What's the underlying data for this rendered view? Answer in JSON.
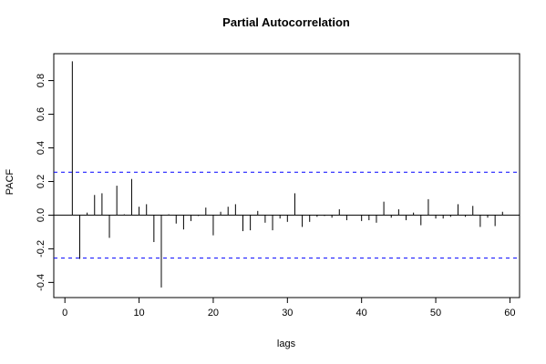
{
  "chart_data": {
    "type": "bar",
    "title": "Partial Autocorrelation",
    "xlabel": "lags",
    "ylabel": "PACF",
    "xlim": [
      0,
      60
    ],
    "ylim": [
      -0.45,
      0.92
    ],
    "x_ticks": [
      0,
      10,
      20,
      30,
      40,
      50,
      60
    ],
    "y_ticks": [
      -0.4,
      -0.2,
      0.0,
      0.2,
      0.4,
      0.6,
      0.8
    ],
    "x_tick_labels": [
      "0",
      "10",
      "20",
      "30",
      "40",
      "50",
      "60"
    ],
    "y_tick_labels": [
      "-0.4",
      "-0.2",
      "0.0",
      "0.2",
      "0.4",
      "0.6",
      "0.8"
    ],
    "confidence_band": 0.255,
    "confidence_color": "#0000ff",
    "bar_color": "#000000",
    "lags": [
      1,
      2,
      3,
      4,
      5,
      6,
      7,
      8,
      9,
      10,
      11,
      12,
      13,
      14,
      15,
      16,
      17,
      18,
      19,
      20,
      21,
      22,
      23,
      24,
      25,
      26,
      27,
      28,
      29,
      30,
      31,
      32,
      33,
      34,
      35,
      36,
      37,
      38,
      39,
      40,
      41,
      42,
      43,
      44,
      45,
      46,
      47,
      48,
      49,
      50,
      51,
      52,
      53,
      54,
      55,
      56,
      57,
      58,
      59
    ],
    "values": [
      0.915,
      -0.26,
      0.015,
      0.12,
      0.13,
      -0.135,
      0.175,
      0.005,
      0.215,
      0.05,
      0.065,
      -0.16,
      -0.43,
      0.005,
      -0.05,
      -0.085,
      -0.035,
      -0.005,
      0.045,
      -0.12,
      0.02,
      0.05,
      0.065,
      -0.095,
      -0.09,
      0.025,
      -0.045,
      -0.09,
      -0.02,
      -0.04,
      0.13,
      -0.07,
      -0.04,
      -0.01,
      -0.005,
      -0.015,
      0.035,
      -0.03,
      0.0,
      -0.035,
      -0.03,
      -0.045,
      0.08,
      -0.015,
      0.035,
      -0.03,
      0.015,
      -0.06,
      0.095,
      -0.02,
      -0.02,
      -0.01,
      0.065,
      -0.01,
      0.055,
      -0.07,
      -0.015,
      -0.065,
      0.02
    ]
  }
}
